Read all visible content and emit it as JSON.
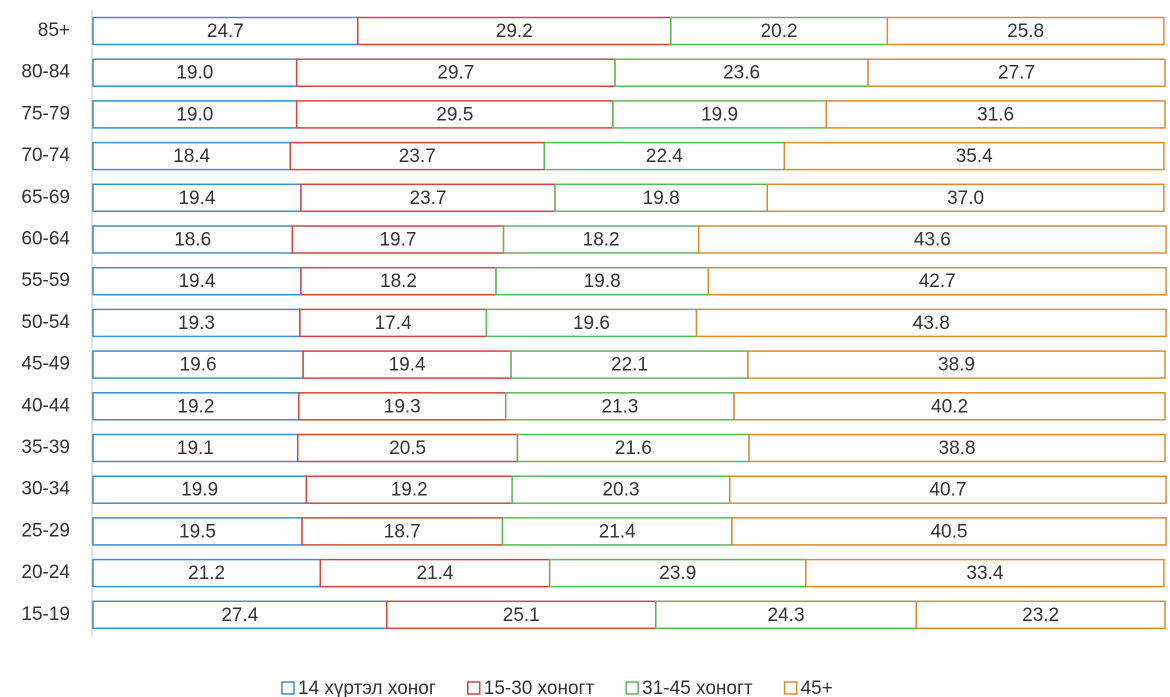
{
  "chart_data": {
    "type": "stacked-barh",
    "categories": [
      "85+",
      "80-84",
      "75-79",
      "70-74",
      "65-69",
      "60-64",
      "55-59",
      "50-54",
      "45-49",
      "40-44",
      "35-39",
      "30-34",
      "25-29",
      "20-24",
      "15-19"
    ],
    "xlim": [
      0,
      100
    ],
    "series": [
      {
        "name": "14 хүртэл хоног",
        "color": "#3b8ed0",
        "values": [
          24.7,
          19.0,
          19.0,
          18.4,
          19.4,
          18.6,
          19.4,
          19.3,
          19.6,
          19.2,
          19.1,
          19.9,
          19.5,
          21.2,
          27.4
        ],
        "value_labels": [
          "24.7",
          "19.0",
          "19.0",
          "18.4",
          "19.4",
          "18.6",
          "19.4",
          "19.3",
          "19.6",
          "19.2",
          "19.1",
          "19.9",
          "19.5",
          "21.2",
          "27.4"
        ]
      },
      {
        "name": "15-30 хоногт",
        "color": "#d9443a",
        "values": [
          29.2,
          29.7,
          29.5,
          23.7,
          23.7,
          19.7,
          18.2,
          17.4,
          19.4,
          19.3,
          20.5,
          19.2,
          18.7,
          21.4,
          25.1
        ],
        "value_labels": [
          "29.2",
          "29.7",
          "29.5",
          "23.7",
          "23.7",
          "19.7",
          "18.2",
          "17.4",
          "19.4",
          "19.3",
          "20.5",
          "19.2",
          "18.7",
          "21.4",
          "25.1"
        ]
      },
      {
        "name": "31-45 хоногт",
        "color": "#5cb85c",
        "values": [
          20.2,
          23.6,
          19.9,
          22.4,
          19.8,
          18.2,
          19.8,
          19.6,
          22.1,
          21.3,
          21.6,
          20.3,
          21.4,
          23.9,
          24.3
        ],
        "value_labels": [
          "20.2",
          "23.6",
          "19.9",
          "22.4",
          "19.8",
          "18.2",
          "19.8",
          "19.6",
          "22.1",
          "21.3",
          "21.6",
          "20.3",
          "21.4",
          "23.9",
          "24.3"
        ]
      },
      {
        "name": "45+",
        "color": "#e08a2a",
        "values": [
          25.8,
          27.7,
          31.6,
          35.4,
          37.0,
          43.6,
          42.7,
          43.8,
          38.9,
          40.2,
          38.8,
          40.7,
          40.5,
          33.4,
          23.2
        ],
        "value_labels": [
          "25.8",
          "27.7",
          "31.6",
          "35.4",
          "37.0",
          "43.6",
          "42.7",
          "43.8",
          "38.9",
          "40.2",
          "38.8",
          "40.7",
          "40.5",
          "33.4",
          "23.2"
        ]
      }
    ],
    "legend": "bottom"
  }
}
